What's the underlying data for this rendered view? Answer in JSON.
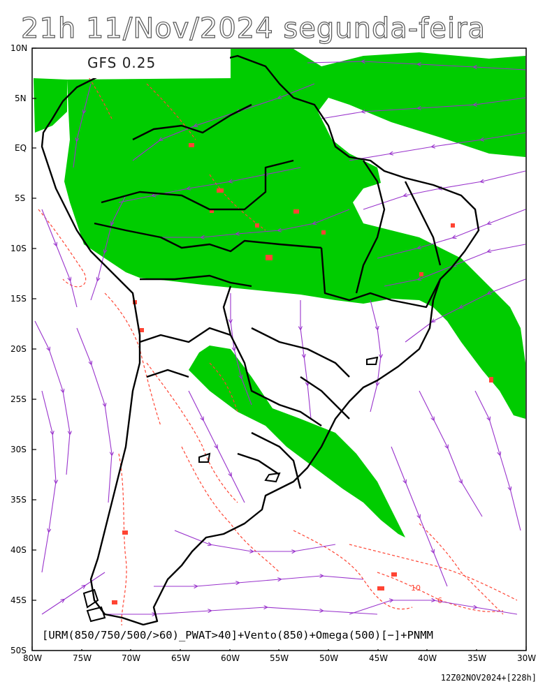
{
  "title": "21h 11/Nov/2024 segunda-feira",
  "model": "GFS 0.25",
  "legend": "[URM(850/750/500/>60)_PWAT>40]+Vento(850)+Omega(500)[−]+PNMM",
  "run_info": "12Z02NOV2024+[228h]",
  "lat_labels": [
    "10N",
    "5N",
    "EQ",
    "5S",
    "10S",
    "15S",
    "20S",
    "25S",
    "30S",
    "35S",
    "40S",
    "45S",
    "50S"
  ],
  "lon_labels": [
    "80W",
    "75W",
    "70W",
    "65W",
    "60W",
    "55W",
    "50W",
    "45W",
    "40W",
    "35W",
    "30W"
  ],
  "contour_labels": [
    "10",
    "6"
  ],
  "colors": {
    "humidity_fill": "#00cc00",
    "streamlines": "#9933cc",
    "omega_contours": "#ff4433",
    "coastline": "#000000"
  }
}
